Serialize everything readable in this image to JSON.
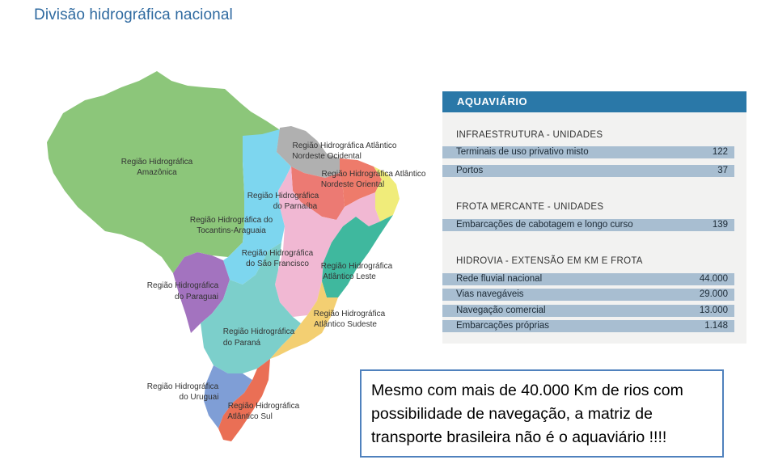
{
  "title": "Divisão hidrográfica nacional",
  "regions": [
    {
      "line1": "Região Hidrográfica",
      "line2": "Amazônica",
      "color": "#8cc67a"
    },
    {
      "line1": "Região Hidrográfica Atlântico",
      "line2": "Nordeste Ocidental",
      "color": "#b0b0b0"
    },
    {
      "line1": "Região Hidrográfica Atlântico",
      "line2": "Nordeste Oriental",
      "color": "#ee7b6b"
    },
    {
      "line1": "Região Hidrográfica",
      "line2": "do Parnaíba",
      "color": "#ec7a73"
    },
    {
      "line1": "Região Hidrográfica do",
      "line2": "Tocantins-Araguaia",
      "color": "#8cc67a"
    },
    {
      "line1": "Região Hidrográfica",
      "line2": "do São Francisco",
      "color": "#f1b8d3"
    },
    {
      "line1": "Região Hidrográfica",
      "line2": "Atlântico Leste",
      "color": "#3fb89e"
    },
    {
      "line1": "Região Hidrográfica",
      "line2": "do Paraguai",
      "color": "#a373bf"
    },
    {
      "line1": "Região Hidrográfica",
      "line2": "Atlântico Sudeste",
      "color": "#f3cf72"
    },
    {
      "line1": "Região Hidrográfica",
      "line2": "do Paraná",
      "color": "#7ccfcb"
    },
    {
      "line1": "Região Hidrográfica",
      "line2": "do Uruguai",
      "color": "#7f9ed6"
    },
    {
      "line1": "Região Hidrográfica",
      "line2": "Atlântico Sul",
      "color": "#ea6f55"
    }
  ],
  "panel": {
    "header": "AQUAVIÁRIO",
    "sections": [
      {
        "title": "INFRAESTRUTURA - UNIDADES",
        "rows": [
          {
            "label": "Terminais de uso privativo misto",
            "value": "122"
          },
          {
            "label": "Portos",
            "value": "37"
          }
        ]
      },
      {
        "title": "FROTA MERCANTE - UNIDADES",
        "rows": [
          {
            "label": "Embarcações de cabotagem e longo curso",
            "value": "139"
          }
        ]
      },
      {
        "title": "HIDROVIA - EXTENSÃO EM KM E FROTA",
        "rows": [
          {
            "label": "Rede fluvial nacional",
            "value": "44.000"
          },
          {
            "label": "Vias navegáveis",
            "value": "29.000"
          },
          {
            "label": "Navegação comercial",
            "value": "13.000"
          },
          {
            "label": "Embarcações próprias",
            "value": "1.148"
          }
        ]
      }
    ]
  },
  "callout": "Mesmo com mais de 40.000 Km de rios com possibilidade de navegação, a matriz de transporte brasileira não é o aquaviário !!!!"
}
